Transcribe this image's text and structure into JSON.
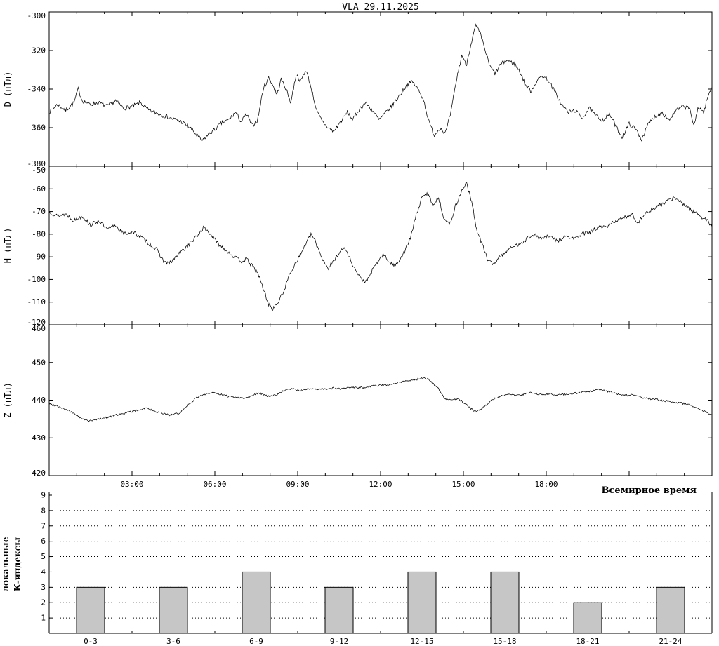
{
  "title": "VLA  29.11.2025",
  "colors": {
    "line": "#000000",
    "bar_fill": "#c6c6c6",
    "background": "#ffffff"
  },
  "xaxis": {
    "range_hours": [
      0,
      24
    ],
    "major_tick_hours": 3,
    "minor_tick_hours": 1,
    "tick_labels": [
      {
        "hour": 3,
        "label": "03:00"
      },
      {
        "hour": 6,
        "label": "06:00"
      },
      {
        "hour": 9,
        "label": "09:00"
      },
      {
        "hour": 12,
        "label": "12:00"
      },
      {
        "hour": 15,
        "label": "15:00"
      },
      {
        "hour": 18,
        "label": "18:00"
      }
    ],
    "axis_label": "Всемирное время"
  },
  "chart_data": [
    {
      "type": "line",
      "name": "D",
      "ylabel": "D (нТл)",
      "ylim": [
        -380,
        -300
      ],
      "yticks": [
        -380,
        -360,
        -340,
        -320,
        -300
      ],
      "noise": 1.1,
      "seed": 7,
      "points": [
        [
          0,
          -352
        ],
        [
          0.3,
          -348
        ],
        [
          0.6,
          -351
        ],
        [
          0.9,
          -347
        ],
        [
          1.05,
          -340
        ],
        [
          1.2,
          -346
        ],
        [
          1.5,
          -348
        ],
        [
          1.8,
          -347
        ],
        [
          2.1,
          -349
        ],
        [
          2.4,
          -346
        ],
        [
          2.7,
          -350
        ],
        [
          3,
          -349
        ],
        [
          3.3,
          -347
        ],
        [
          3.6,
          -351
        ],
        [
          4,
          -353
        ],
        [
          4.4,
          -355
        ],
        [
          4.8,
          -357
        ],
        [
          5.1,
          -360
        ],
        [
          5.35,
          -364
        ],
        [
          5.55,
          -367
        ],
        [
          5.8,
          -363
        ],
        [
          6,
          -361
        ],
        [
          6.2,
          -358
        ],
        [
          6.5,
          -356
        ],
        [
          6.75,
          -352
        ],
        [
          6.95,
          -357
        ],
        [
          7.15,
          -353
        ],
        [
          7.35,
          -359
        ],
        [
          7.55,
          -356
        ],
        [
          7.75,
          -340
        ],
        [
          7.95,
          -334
        ],
        [
          8.1,
          -338
        ],
        [
          8.25,
          -343
        ],
        [
          8.4,
          -335
        ],
        [
          8.55,
          -339
        ],
        [
          8.75,
          -347
        ],
        [
          8.95,
          -332
        ],
        [
          9.1,
          -336
        ],
        [
          9.3,
          -330
        ],
        [
          9.5,
          -340
        ],
        [
          9.7,
          -352
        ],
        [
          9.9,
          -357
        ],
        [
          10.1,
          -360
        ],
        [
          10.3,
          -362
        ],
        [
          10.55,
          -357
        ],
        [
          10.8,
          -352
        ],
        [
          11,
          -356
        ],
        [
          11.2,
          -351
        ],
        [
          11.45,
          -347
        ],
        [
          11.7,
          -351
        ],
        [
          11.95,
          -356
        ],
        [
          12.2,
          -352
        ],
        [
          12.45,
          -348
        ],
        [
          12.7,
          -343
        ],
        [
          12.95,
          -338
        ],
        [
          13.15,
          -336
        ],
        [
          13.35,
          -340
        ],
        [
          13.55,
          -345
        ],
        [
          13.75,
          -357
        ],
        [
          13.95,
          -364
        ],
        [
          14.15,
          -360
        ],
        [
          14.35,
          -363
        ],
        [
          14.55,
          -352
        ],
        [
          14.75,
          -335
        ],
        [
          14.95,
          -322
        ],
        [
          15.1,
          -328
        ],
        [
          15.25,
          -318
        ],
        [
          15.45,
          -307
        ],
        [
          15.6,
          -311
        ],
        [
          15.75,
          -318
        ],
        [
          15.95,
          -328
        ],
        [
          16.15,
          -332
        ],
        [
          16.35,
          -327
        ],
        [
          16.6,
          -325
        ],
        [
          16.85,
          -327
        ],
        [
          17.05,
          -331
        ],
        [
          17.25,
          -338
        ],
        [
          17.45,
          -341
        ],
        [
          17.65,
          -336
        ],
        [
          17.85,
          -333
        ],
        [
          18.05,
          -335
        ],
        [
          18.3,
          -341
        ],
        [
          18.55,
          -348
        ],
        [
          18.8,
          -352
        ],
        [
          19.05,
          -351
        ],
        [
          19.3,
          -355
        ],
        [
          19.55,
          -350
        ],
        [
          19.8,
          -354
        ],
        [
          20.05,
          -356
        ],
        [
          20.3,
          -353
        ],
        [
          20.55,
          -360
        ],
        [
          20.75,
          -365
        ],
        [
          21,
          -358
        ],
        [
          21.25,
          -361
        ],
        [
          21.45,
          -366
        ],
        [
          21.7,
          -358
        ],
        [
          21.95,
          -354
        ],
        [
          22.2,
          -352
        ],
        [
          22.45,
          -356
        ],
        [
          22.7,
          -351
        ],
        [
          22.95,
          -349
        ],
        [
          23.2,
          -350
        ],
        [
          23.35,
          -360
        ],
        [
          23.5,
          -349
        ],
        [
          23.7,
          -352
        ],
        [
          23.85,
          -344
        ],
        [
          24,
          -339
        ]
      ]
    },
    {
      "type": "line",
      "name": "H",
      "ylabel": "H (нТл)",
      "ylim": [
        -120,
        -50
      ],
      "yticks": [
        -120,
        -110,
        -100,
        -90,
        -80,
        -70,
        -60,
        -50
      ],
      "noise": 0.9,
      "seed": 13,
      "points": [
        [
          0,
          -70
        ],
        [
          0.3,
          -72
        ],
        [
          0.6,
          -71
        ],
        [
          0.9,
          -74
        ],
        [
          1.2,
          -72
        ],
        [
          1.5,
          -76
        ],
        [
          1.8,
          -74
        ],
        [
          2.1,
          -78
        ],
        [
          2.4,
          -76
        ],
        [
          2.7,
          -80
        ],
        [
          3,
          -79
        ],
        [
          3.3,
          -81
        ],
        [
          3.6,
          -84
        ],
        [
          3.9,
          -87
        ],
        [
          4.15,
          -92
        ],
        [
          4.35,
          -93
        ],
        [
          4.6,
          -90
        ],
        [
          4.85,
          -87
        ],
        [
          5.1,
          -84
        ],
        [
          5.35,
          -81
        ],
        [
          5.6,
          -77
        ],
        [
          5.85,
          -80
        ],
        [
          6.1,
          -84
        ],
        [
          6.4,
          -87
        ],
        [
          6.7,
          -90
        ],
        [
          6.95,
          -92
        ],
        [
          7.15,
          -91
        ],
        [
          7.35,
          -94
        ],
        [
          7.55,
          -97
        ],
        [
          7.75,
          -104
        ],
        [
          7.95,
          -111
        ],
        [
          8.1,
          -113
        ],
        [
          8.3,
          -110
        ],
        [
          8.5,
          -105
        ],
        [
          8.7,
          -98
        ],
        [
          8.9,
          -93
        ],
        [
          9.1,
          -89
        ],
        [
          9.3,
          -84
        ],
        [
          9.5,
          -80
        ],
        [
          9.7,
          -85
        ],
        [
          9.9,
          -91
        ],
        [
          10.1,
          -95
        ],
        [
          10.3,
          -92
        ],
        [
          10.5,
          -88
        ],
        [
          10.7,
          -86
        ],
        [
          10.9,
          -91
        ],
        [
          11.1,
          -96
        ],
        [
          11.3,
          -100
        ],
        [
          11.5,
          -101
        ],
        [
          11.7,
          -96
        ],
        [
          11.9,
          -92
        ],
        [
          12.1,
          -89
        ],
        [
          12.3,
          -92
        ],
        [
          12.5,
          -94
        ],
        [
          12.7,
          -91
        ],
        [
          12.9,
          -87
        ],
        [
          13.1,
          -81
        ],
        [
          13.3,
          -71
        ],
        [
          13.5,
          -64
        ],
        [
          13.7,
          -62
        ],
        [
          13.9,
          -67
        ],
        [
          14.1,
          -64
        ],
        [
          14.3,
          -73
        ],
        [
          14.5,
          -76
        ],
        [
          14.7,
          -68
        ],
        [
          14.9,
          -62
        ],
        [
          15.1,
          -57
        ],
        [
          15.3,
          -66
        ],
        [
          15.5,
          -79
        ],
        [
          15.7,
          -85
        ],
        [
          15.9,
          -92
        ],
        [
          16.1,
          -93
        ],
        [
          16.3,
          -90
        ],
        [
          16.6,
          -87
        ],
        [
          16.9,
          -85
        ],
        [
          17.2,
          -83
        ],
        [
          17.5,
          -80
        ],
        [
          17.8,
          -82
        ],
        [
          18.1,
          -81
        ],
        [
          18.4,
          -83
        ],
        [
          18.7,
          -81
        ],
        [
          19,
          -82
        ],
        [
          19.3,
          -80
        ],
        [
          19.6,
          -79
        ],
        [
          19.9,
          -77
        ],
        [
          20.2,
          -77
        ],
        [
          20.5,
          -74
        ],
        [
          20.8,
          -73
        ],
        [
          21.1,
          -71
        ],
        [
          21.3,
          -75
        ],
        [
          21.5,
          -72
        ],
        [
          21.7,
          -70
        ],
        [
          22,
          -68
        ],
        [
          22.3,
          -66
        ],
        [
          22.6,
          -64
        ],
        [
          22.9,
          -66
        ],
        [
          23.2,
          -69
        ],
        [
          23.5,
          -71
        ],
        [
          23.8,
          -74
        ],
        [
          24,
          -76
        ]
      ]
    },
    {
      "type": "line",
      "name": "Z",
      "ylabel": "Z (нТл)",
      "ylim": [
        420,
        460
      ],
      "yticks": [
        420,
        430,
        440,
        450,
        460
      ],
      "noise": 0.25,
      "seed": 99,
      "points": [
        [
          0,
          439
        ],
        [
          0.3,
          438.5
        ],
        [
          0.6,
          437.5
        ],
        [
          0.9,
          436.5
        ],
        [
          1.2,
          435
        ],
        [
          1.5,
          434.5
        ],
        [
          1.8,
          435
        ],
        [
          2.1,
          435.5
        ],
        [
          2.4,
          436
        ],
        [
          2.7,
          436.5
        ],
        [
          3,
          437
        ],
        [
          3.3,
          437.5
        ],
        [
          3.5,
          438
        ],
        [
          3.8,
          437
        ],
        [
          4.1,
          436.5
        ],
        [
          4.4,
          436
        ],
        [
          4.7,
          436.5
        ],
        [
          5,
          438.5
        ],
        [
          5.3,
          440.5
        ],
        [
          5.6,
          441.5
        ],
        [
          5.9,
          442
        ],
        [
          6.2,
          441.5
        ],
        [
          6.5,
          441
        ],
        [
          6.8,
          440.8
        ],
        [
          7.1,
          440.5
        ],
        [
          7.4,
          441.5
        ],
        [
          7.6,
          442
        ],
        [
          7.9,
          441
        ],
        [
          8.2,
          441.3
        ],
        [
          8.5,
          442.5
        ],
        [
          8.8,
          443
        ],
        [
          9.1,
          442.6
        ],
        [
          9.4,
          443
        ],
        [
          9.7,
          442.8
        ],
        [
          10,
          443
        ],
        [
          10.3,
          443.2
        ],
        [
          10.6,
          443
        ],
        [
          10.9,
          443.4
        ],
        [
          11.2,
          443.2
        ],
        [
          11.5,
          443.5
        ],
        [
          11.8,
          443.8
        ],
        [
          12.1,
          444
        ],
        [
          12.4,
          444.3
        ],
        [
          12.7,
          444.8
        ],
        [
          13,
          445.2
        ],
        [
          13.3,
          445.5
        ],
        [
          13.5,
          446
        ],
        [
          13.7,
          445.7
        ],
        [
          13.9,
          444.5
        ],
        [
          14.1,
          443
        ],
        [
          14.3,
          440.5
        ],
        [
          14.5,
          440
        ],
        [
          14.8,
          440.3
        ],
        [
          15,
          439.5
        ],
        [
          15.2,
          438.2
        ],
        [
          15.4,
          437
        ],
        [
          15.6,
          437.5
        ],
        [
          15.8,
          438.5
        ],
        [
          16,
          440
        ],
        [
          16.3,
          441
        ],
        [
          16.6,
          441.5
        ],
        [
          16.9,
          441.3
        ],
        [
          17.2,
          441.6
        ],
        [
          17.5,
          442
        ],
        [
          17.8,
          441.5
        ],
        [
          18.1,
          441.8
        ],
        [
          18.4,
          441.4
        ],
        [
          18.7,
          441.6
        ],
        [
          19,
          441.8
        ],
        [
          19.3,
          442
        ],
        [
          19.6,
          442.4
        ],
        [
          19.9,
          442.8
        ],
        [
          20.2,
          442.4
        ],
        [
          20.5,
          441.8
        ],
        [
          20.8,
          441.2
        ],
        [
          21.1,
          441.4
        ],
        [
          21.4,
          440.8
        ],
        [
          21.7,
          440.4
        ],
        [
          22,
          440.2
        ],
        [
          22.3,
          439.8
        ],
        [
          22.6,
          439.5
        ],
        [
          22.9,
          439.2
        ],
        [
          23.2,
          438.8
        ],
        [
          23.5,
          437.8
        ],
        [
          23.8,
          436.8
        ],
        [
          24,
          436
        ]
      ]
    },
    {
      "type": "bar",
      "name": "K",
      "ylabel_lines": [
        "локальные",
        "К-индексы"
      ],
      "ylim": [
        0,
        9
      ],
      "yticks": [
        1,
        2,
        3,
        4,
        5,
        6,
        7,
        8,
        9
      ],
      "grid_levels": [
        1,
        2,
        3,
        4,
        5,
        6,
        7,
        8
      ],
      "categories": [
        "0-3",
        "3-6",
        "6-9",
        "9-12",
        "12-15",
        "15-18",
        "18-21",
        "21-24"
      ],
      "values": [
        3,
        3,
        4,
        3,
        4,
        4,
        2,
        3
      ]
    }
  ]
}
